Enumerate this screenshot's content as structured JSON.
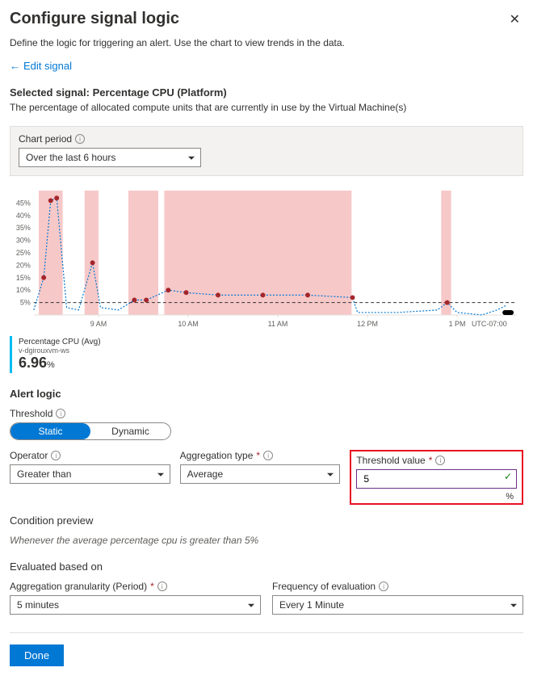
{
  "header": {
    "title": "Configure signal logic",
    "close_glyph": "✕"
  },
  "subtitle": "Define the logic for triggering an alert. Use the chart to view trends in the data.",
  "edit_signal": {
    "arrow": "←",
    "label": "Edit signal"
  },
  "selected_signal": {
    "prefix": "Selected signal: ",
    "value": "Percentage CPU (Platform)"
  },
  "signal_desc": "The percentage of allocated compute units that are currently in use by the Virtual Machine(s)",
  "chart_period": {
    "label": "Chart period",
    "value": "Over the last 6 hours"
  },
  "chart": {
    "type": "line",
    "x_labels": [
      "9 AM",
      "10 AM",
      "11 AM",
      "12 PM",
      "1 PM",
      "UTC-07:00"
    ],
    "y_ticks": [
      5,
      10,
      15,
      20,
      25,
      30,
      35,
      40,
      45
    ],
    "y_tick_suffix": "%",
    "ylim": [
      0,
      50
    ],
    "threshold_value": 5,
    "threshold_color": "#323130",
    "threshold_dash": "4,3",
    "line_color": "#0078d4",
    "line_dash": "2,2",
    "marker_color": "#a4262c",
    "marker_radius": 3,
    "band_color": "#f7c8c8",
    "background_color": "#ffffff",
    "grid_color": "#e1dfdd",
    "x_label_color": "#605e5c",
    "y_label_color": "#605e5c",
    "points": [
      {
        "t": -5,
        "v": 2
      },
      {
        "t": 5,
        "v": 15,
        "marker": true
      },
      {
        "t": 12,
        "v": 46,
        "marker": true
      },
      {
        "t": 18,
        "v": 47,
        "marker": true
      },
      {
        "t": 28,
        "v": 3
      },
      {
        "t": 40,
        "v": 2
      },
      {
        "t": 54,
        "v": 21,
        "marker": true
      },
      {
        "t": 62,
        "v": 3
      },
      {
        "t": 80,
        "v": 2
      },
      {
        "t": 96,
        "v": 6,
        "marker": true
      },
      {
        "t": 108,
        "v": 6,
        "marker": true
      },
      {
        "t": 130,
        "v": 10,
        "marker": true
      },
      {
        "t": 148,
        "v": 9,
        "marker": true
      },
      {
        "t": 180,
        "v": 8,
        "marker": true
      },
      {
        "t": 225,
        "v": 8,
        "marker": true
      },
      {
        "t": 270,
        "v": 8,
        "marker": true
      },
      {
        "t": 315,
        "v": 7,
        "marker": true
      },
      {
        "t": 320,
        "v": 1
      },
      {
        "t": 360,
        "v": 1
      },
      {
        "t": 400,
        "v": 2
      },
      {
        "t": 410,
        "v": 5,
        "marker": true
      },
      {
        "t": 420,
        "v": 1
      },
      {
        "t": 445,
        "v": 0
      },
      {
        "t": 460,
        "v": 2
      },
      {
        "t": 470,
        "v": 4
      }
    ],
    "bands": [
      {
        "from": 0,
        "to": 24
      },
      {
        "from": 46,
        "to": 60
      },
      {
        "from": 90,
        "to": 120
      },
      {
        "from": 126,
        "to": 314
      },
      {
        "from": 404,
        "to": 414
      }
    ]
  },
  "metric_card": {
    "title": "Percentage CPU (Avg)",
    "sub": "v-dgirouxvm-ws",
    "value": "6.96",
    "unit": "%"
  },
  "alert_logic": {
    "heading": "Alert logic",
    "threshold_label": "Threshold",
    "toggle": {
      "static": "Static",
      "dynamic": "Dynamic",
      "selected": "static"
    },
    "operator": {
      "label": "Operator",
      "value": "Greater than"
    },
    "aggregation": {
      "label": "Aggregation type",
      "value": "Average"
    },
    "threshold_value": {
      "label": "Threshold value",
      "value": "5",
      "unit": "%"
    }
  },
  "condition_preview": {
    "heading": "Condition preview",
    "text": "Whenever the average percentage cpu is greater than 5%"
  },
  "evaluated": {
    "heading": "Evaluated based on",
    "granularity": {
      "label": "Aggregation granularity (Period)",
      "value": "5 minutes"
    },
    "frequency": {
      "label": "Frequency of evaluation",
      "value": "Every 1 Minute"
    }
  },
  "done_label": "Done",
  "colors": {
    "primary": "#0078d4",
    "danger": "#e81123",
    "success": "#107c10"
  }
}
